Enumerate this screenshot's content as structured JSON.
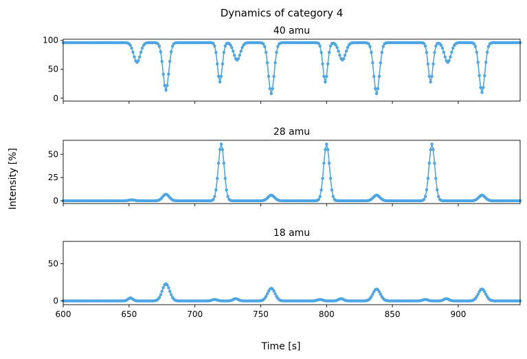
{
  "figure": {
    "suptitle": "Dynamics of category 4",
    "ylabel": "Intensity [%]",
    "xlabel": "Time [s]"
  },
  "chart_data": [
    {
      "type": "line",
      "title": "40 amu",
      "xlim": [
        600,
        947
      ],
      "ylim": [
        -5,
        102
      ],
      "yticks": [
        0,
        50,
        100
      ],
      "xticks": [
        600,
        650,
        700,
        750,
        800,
        850,
        900
      ],
      "show_xticklabels": false,
      "color": "#4da6e3",
      "baseline": 96,
      "features": [
        {
          "center": 656,
          "width": 2.5,
          "value": 62
        },
        {
          "center": 678,
          "width": 2.2,
          "value": 14
        },
        {
          "center": 719,
          "width": 1.8,
          "value": 28
        },
        {
          "center": 732,
          "width": 2.5,
          "value": 66
        },
        {
          "center": 758,
          "width": 2.2,
          "value": 8
        },
        {
          "center": 799,
          "width": 1.8,
          "value": 28
        },
        {
          "center": 812,
          "width": 2.5,
          "value": 66
        },
        {
          "center": 838,
          "width": 2.2,
          "value": 8
        },
        {
          "center": 879,
          "width": 1.8,
          "value": 28
        },
        {
          "center": 892,
          "width": 2.5,
          "value": 62
        },
        {
          "center": 918,
          "width": 2.2,
          "value": 10
        }
      ]
    },
    {
      "type": "line",
      "title": "28 amu",
      "xlim": [
        600,
        947
      ],
      "ylim": [
        -3,
        65
      ],
      "yticks": [
        0,
        25,
        50
      ],
      "xticks": [
        600,
        650,
        700,
        750,
        800,
        850,
        900
      ],
      "show_xticklabels": false,
      "color": "#4da6e3",
      "baseline": 0,
      "features": [
        {
          "center": 652,
          "width": 2.0,
          "value": 1
        },
        {
          "center": 678,
          "width": 2.5,
          "value": 7
        },
        {
          "center": 720,
          "width": 2.2,
          "value": 61
        },
        {
          "center": 758,
          "width": 2.5,
          "value": 6
        },
        {
          "center": 800,
          "width": 2.2,
          "value": 61
        },
        {
          "center": 838,
          "width": 2.5,
          "value": 6
        },
        {
          "center": 880,
          "width": 2.2,
          "value": 61
        },
        {
          "center": 918,
          "width": 2.5,
          "value": 6
        }
      ]
    },
    {
      "type": "line",
      "title": "18 amu",
      "xlim": [
        600,
        947
      ],
      "ylim": [
        -5,
        80
      ],
      "yticks": [
        0,
        50
      ],
      "xticks": [
        600,
        650,
        700,
        750,
        800,
        850,
        900
      ],
      "show_xticklabels": true,
      "color": "#4da6e3",
      "baseline": 0,
      "features": [
        {
          "center": 651,
          "width": 1.8,
          "value": 4
        },
        {
          "center": 678,
          "width": 2.8,
          "value": 23
        },
        {
          "center": 715,
          "width": 2.0,
          "value": 2
        },
        {
          "center": 731,
          "width": 2.0,
          "value": 3
        },
        {
          "center": 758,
          "width": 2.8,
          "value": 17
        },
        {
          "center": 795,
          "width": 2.0,
          "value": 2
        },
        {
          "center": 811,
          "width": 2.0,
          "value": 3
        },
        {
          "center": 838,
          "width": 2.8,
          "value": 16
        },
        {
          "center": 875,
          "width": 2.0,
          "value": 2
        },
        {
          "center": 891,
          "width": 2.0,
          "value": 3
        },
        {
          "center": 918,
          "width": 2.8,
          "value": 16
        }
      ]
    }
  ]
}
